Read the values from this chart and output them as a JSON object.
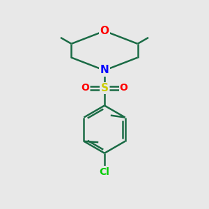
{
  "background_color": "#e8e8e8",
  "bond_color": "#1a6b45",
  "nitrogen_color": "#0000ff",
  "oxygen_color": "#ff0000",
  "sulfur_color": "#cccc00",
  "chlorine_color": "#00cc00",
  "line_width": 1.8,
  "figsize": [
    3.0,
    3.0
  ],
  "dpi": 100,
  "xlim": [
    0,
    10
  ],
  "ylim": [
    0,
    10
  ]
}
